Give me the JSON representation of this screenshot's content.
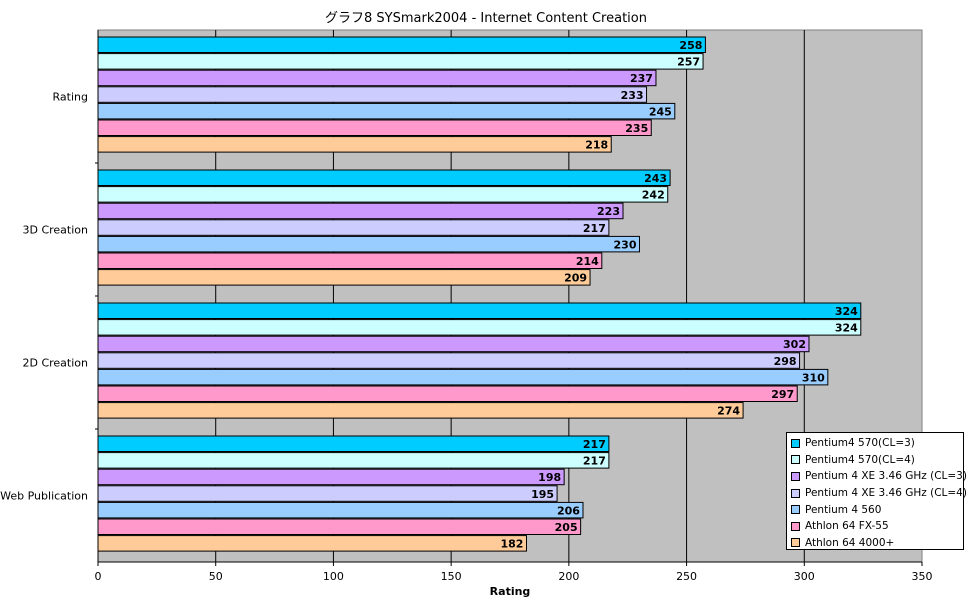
{
  "chart_data": {
    "type": "bar",
    "orientation": "horizontal",
    "title": "グラフ8  SYSmark2004 - Internet Content Creation",
    "xlabel": "Rating",
    "ylabel": "",
    "xlim": [
      0,
      350
    ],
    "xticks": [
      0,
      50,
      100,
      150,
      200,
      250,
      300,
      350
    ],
    "grid": true,
    "legend_position": "bottom-right",
    "categories": [
      "Rating",
      "3D Creation",
      "2D Creation",
      "Web Publication"
    ],
    "series": [
      {
        "name": "Pentium4 570(CL=3)",
        "color": "#00ccff",
        "values": [
          258,
          243,
          324,
          217
        ]
      },
      {
        "name": "Pentium4 570(CL=4)",
        "color": "#ccffff",
        "values": [
          257,
          242,
          324,
          217
        ]
      },
      {
        "name": "Pentium 4 XE 3.46 GHz (CL=3)",
        "color": "#cc99ff",
        "values": [
          237,
          223,
          302,
          198
        ]
      },
      {
        "name": "Pentium 4 XE 3.46 GHz (CL=4)",
        "color": "#ccccff",
        "values": [
          233,
          217,
          298,
          195
        ]
      },
      {
        "name": "Pentium 4 560",
        "color": "#99ccff",
        "values": [
          245,
          230,
          310,
          206
        ]
      },
      {
        "name": "Athlon 64 FX-55",
        "color": "#ff99cc",
        "values": [
          235,
          214,
          297,
          205
        ]
      },
      {
        "name": "Athlon 64 4000+",
        "color": "#ffcc99",
        "values": [
          218,
          209,
          274,
          182
        ]
      }
    ],
    "plot_background": "#c0c0c0"
  }
}
